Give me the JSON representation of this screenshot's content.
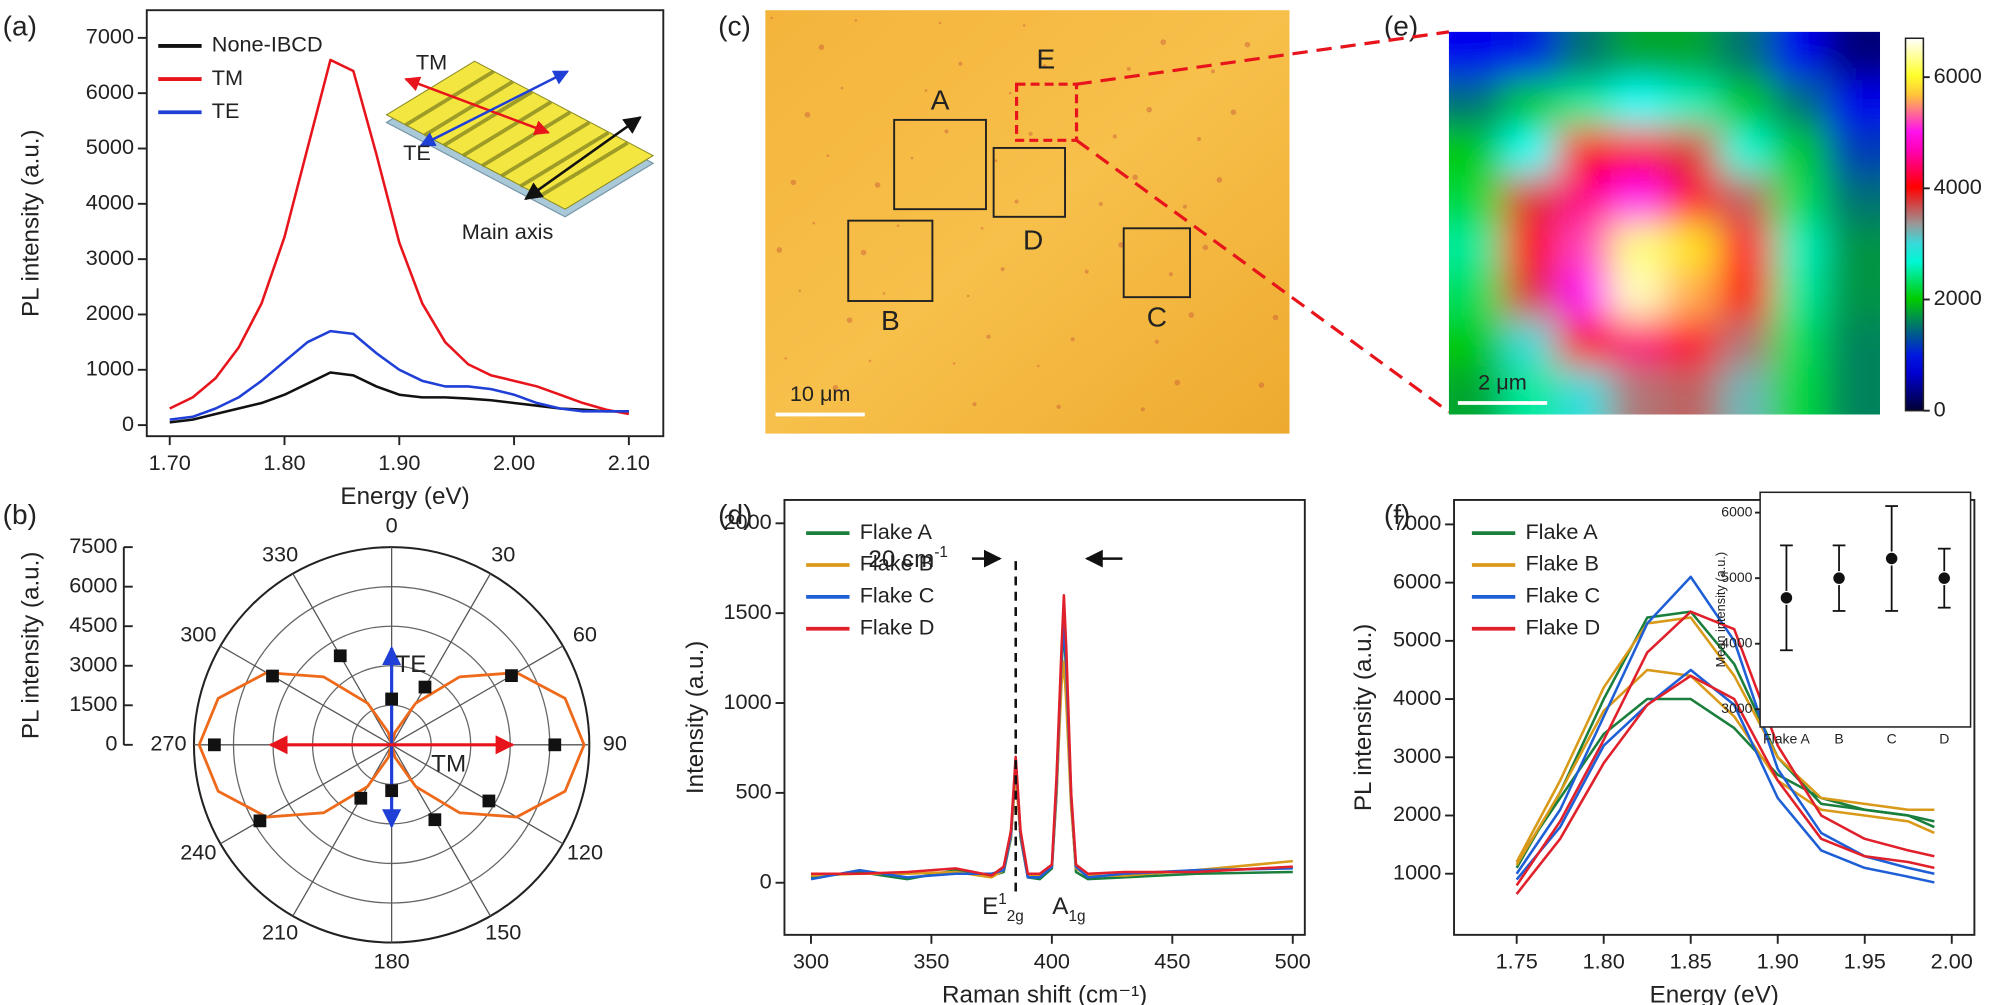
{
  "chart_data": [
    {
      "panel": "(a)",
      "type": "line",
      "x_label": "Energy (eV)",
      "y_label": "PL intensity (a.u.)",
      "x": [
        1.7,
        1.72,
        1.74,
        1.76,
        1.78,
        1.8,
        1.82,
        1.84,
        1.86,
        1.88,
        1.9,
        1.92,
        1.94,
        1.96,
        1.98,
        2.0,
        2.02,
        2.04,
        2.06,
        2.08,
        2.1
      ],
      "xlim": [
        1.68,
        2.13
      ],
      "xticks": [
        {
          "value": 1.7,
          "label": "1.70"
        },
        {
          "value": 1.8,
          "label": "1.80"
        },
        {
          "value": 1.9,
          "label": "1.90"
        },
        {
          "value": 2.0,
          "label": "2.00"
        },
        {
          "value": 2.1,
          "label": "2.10"
        }
      ],
      "ylim": [
        -200,
        7500
      ],
      "yticks": [
        0,
        1000,
        2000,
        3000,
        4000,
        5000,
        6000,
        7000
      ],
      "legend": "upper left",
      "series": [
        {
          "name": "None-IBCD",
          "color": "#111111",
          "values": [
            50,
            100,
            200,
            300,
            400,
            550,
            750,
            950,
            900,
            700,
            550,
            500,
            500,
            480,
            450,
            400,
            350,
            300,
            280,
            250,
            250
          ]
        },
        {
          "name": "TM",
          "color": "#e8141b",
          "values": [
            300,
            500,
            850,
            1400,
            2200,
            3400,
            5000,
            6600,
            6400,
            4900,
            3300,
            2200,
            1500,
            1100,
            900,
            800,
            700,
            550,
            400,
            280,
            200
          ]
        },
        {
          "name": "TE",
          "color": "#1f3fd6",
          "values": [
            100,
            150,
            300,
            500,
            800,
            1150,
            1500,
            1700,
            1650,
            1300,
            1000,
            800,
            700,
            700,
            650,
            550,
            400,
            300,
            250,
            250,
            250
          ]
        }
      ],
      "annotations": [
        "TM",
        "TE",
        "Main axis"
      ]
    },
    {
      "panel": "(b)",
      "type": "polar",
      "y_label": "PL intensity (a.u.)",
      "ylim": [
        0,
        7500
      ],
      "yticks": [
        0,
        1500,
        3000,
        4500,
        6000,
        7500
      ],
      "angle_ticks": [
        0,
        30,
        60,
        90,
        120,
        150,
        180,
        210,
        240,
        270,
        300,
        330
      ],
      "points": {
        "angles": [
          0,
          30,
          60,
          90,
          120,
          150,
          180,
          210,
          240,
          270,
          300,
          330
        ],
        "values": [
          1740,
          2530,
          5250,
          6190,
          4260,
          3280,
          1740,
          2340,
          5770,
          6725,
          5220,
          3900
        ],
        "color": "#111111"
      },
      "curve": {
        "angles": [
          0,
          15,
          30,
          45,
          60,
          75,
          90,
          105,
          120,
          135,
          150,
          165,
          180,
          195,
          210,
          225,
          240,
          255,
          270,
          285,
          300,
          315,
          330,
          345,
          360
        ],
        "values": [
          0,
          489,
          1825,
          3650,
          5475,
          6811,
          7300,
          6811,
          5475,
          3650,
          1825,
          489,
          0,
          489,
          1825,
          3650,
          5475,
          6811,
          7300,
          6811,
          5475,
          3650,
          1825,
          489,
          0
        ],
        "color": "#ee6a1a"
      },
      "annotations": [
        "TE",
        "TM"
      ]
    },
    {
      "panel": "(c)",
      "type": "image",
      "labels": [
        "A",
        "B",
        "C",
        "D",
        "E"
      ],
      "scale_bar": "10 μm"
    },
    {
      "panel": "(d)",
      "type": "line",
      "x_label": "Raman shift (cm⁻¹)",
      "y_label": "Intensity (a.u.)",
      "x": [
        300,
        320,
        340,
        360,
        375,
        380,
        383,
        385,
        387,
        390,
        395,
        400,
        402,
        404,
        405,
        406,
        408,
        410,
        415,
        430,
        460,
        500
      ],
      "xlim": [
        289,
        505
      ],
      "xticks": [
        300,
        350,
        400,
        450,
        500
      ],
      "ylim": [
        -290,
        2130
      ],
      "yticks": [
        0,
        500,
        1000,
        1500,
        2000
      ],
      "legend": "upper left",
      "series": [
        {
          "name": "Flake A",
          "color": "#1a7f3c",
          "values": [
            30,
            60,
            20,
            70,
            40,
            60,
            250,
            650,
            250,
            30,
            20,
            80,
            500,
            1200,
            1420,
            1150,
            450,
            60,
            20,
            30,
            50,
            60
          ]
        },
        {
          "name": "Flake B",
          "color": "#d99a1a",
          "values": [
            40,
            50,
            50,
            60,
            30,
            70,
            260,
            600,
            260,
            40,
            40,
            90,
            520,
            1100,
            1230,
            1000,
            420,
            80,
            40,
            40,
            70,
            120
          ]
        },
        {
          "name": "Flake C",
          "color": "#1f5fd6",
          "values": [
            20,
            70,
            30,
            50,
            50,
            70,
            270,
            690,
            270,
            30,
            30,
            90,
            560,
            1250,
            1430,
            1200,
            480,
            90,
            30,
            50,
            70,
            80
          ]
        },
        {
          "name": "Flake D",
          "color": "#e0202a",
          "values": [
            50,
            50,
            60,
            80,
            40,
            90,
            290,
            700,
            290,
            50,
            50,
            100,
            600,
            1300,
            1600,
            1300,
            500,
            100,
            50,
            60,
            60,
            90
          ]
        }
      ],
      "annotations": [
        {
          "text": "20 cm",
          "sup": "-1"
        },
        {
          "text": "E",
          "sup": "1",
          "sub": "2g"
        },
        {
          "text": "A",
          "sub": "1g"
        }
      ]
    },
    {
      "panel": "(e)",
      "type": "heatmap",
      "z": [
        [
          800,
          1000,
          1500,
          1800,
          1800,
          1500,
          800,
          300
        ],
        [
          1500,
          2000,
          2500,
          2800,
          2600,
          2000,
          1500,
          800
        ],
        [
          2000,
          2800,
          4000,
          4200,
          3800,
          2700,
          2000,
          1200
        ],
        [
          2200,
          3800,
          4500,
          5000,
          4200,
          3600,
          2300,
          1500
        ],
        [
          2500,
          4000,
          5200,
          6300,
          5800,
          4200,
          2600,
          1700
        ],
        [
          2300,
          3800,
          5000,
          6500,
          5600,
          4000,
          2500,
          1700
        ],
        [
          2000,
          3000,
          4000,
          4500,
          4200,
          3500,
          2300,
          1600
        ],
        [
          1800,
          2500,
          3000,
          3500,
          3600,
          3200,
          2200,
          1600
        ]
      ],
      "zlim": [
        0,
        6700
      ],
      "zticks": [
        0,
        2000,
        4000,
        6000
      ],
      "scale_bar": "2 μm"
    },
    {
      "panel": "(f)",
      "type": "line",
      "x_label": "Energy (eV)",
      "y_label": "PL intensity (a.u.)",
      "x": [
        1.75,
        1.775,
        1.8,
        1.825,
        1.85,
        1.875,
        1.9,
        1.925,
        1.95,
        1.975,
        1.99
      ],
      "xlim": [
        1.714,
        2.013
      ],
      "xticks": [
        1.75,
        {
          "value": 1.8,
          "label": "1.80"
        },
        1.85,
        {
          "value": 1.9,
          "label": "1.90"
        },
        1.95,
        {
          "value": 2.0,
          "label": "2.00"
        }
      ],
      "ylim": [
        -50,
        7420
      ],
      "yticks": [
        1000,
        2000,
        3000,
        4000,
        5000,
        6000,
        7000
      ],
      "legend": "upper left",
      "series": [
        {
          "name": "Flake A",
          "color": "#1a7f3c",
          "curves": [
            [
              1200,
              2300,
              3400,
              4000,
              4000,
              3500,
              2700,
              2300,
              2100,
              2000,
              1900
            ],
            [
              1100,
              2400,
              4000,
              5400,
              5500,
              4600,
              3000,
              2200,
              2100,
              2000,
              1800
            ]
          ]
        },
        {
          "name": "Flake B",
          "color": "#d99a1a",
          "curves": [
            [
              1200,
              2600,
              4200,
              5300,
              5400,
              4400,
              3000,
              2300,
              2200,
              2100,
              2100
            ],
            [
              1150,
              2400,
              3800,
              4500,
              4400,
              3700,
              2600,
              2100,
              2000,
              1900,
              1700
            ]
          ]
        },
        {
          "name": "Flake C",
          "color": "#1f5fd6",
          "curves": [
            [
              1000,
              2100,
              3700,
              5300,
              6100,
              5000,
              2800,
              1700,
              1300,
              1100,
              1000
            ],
            [
              900,
              1800,
              3200,
              3900,
              4500,
              3900,
              2300,
              1400,
              1100,
              950,
              850
            ]
          ]
        },
        {
          "name": "Flake D",
          "color": "#e0202a",
          "curves": [
            [
              800,
              1900,
              3300,
              4800,
              5500,
              5200,
              3200,
              2000,
              1600,
              1400,
              1300
            ],
            [
              650,
              1600,
              2900,
              3900,
              4400,
              4000,
              2600,
              1600,
              1300,
              1200,
              1100
            ]
          ]
        }
      ],
      "inset": {
        "type": "errorbar",
        "y_label": "Mean intensity (a.u.)",
        "categories": [
          "Flake A",
          "B",
          "C",
          "D"
        ],
        "values": [
          4700,
          5000,
          5300,
          5000
        ],
        "errors": [
          800,
          500,
          800,
          450
        ],
        "ylim": [
          2730,
          6310
        ],
        "yticks": [
          3000,
          4000,
          5000,
          6000
        ]
      }
    }
  ]
}
